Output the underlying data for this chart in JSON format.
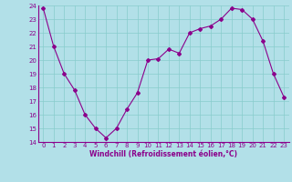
{
  "x": [
    0,
    1,
    2,
    3,
    4,
    5,
    6,
    7,
    8,
    9,
    10,
    11,
    12,
    13,
    14,
    15,
    16,
    17,
    18,
    19,
    20,
    21,
    22,
    23
  ],
  "y": [
    23.8,
    21.0,
    19.0,
    17.8,
    16.0,
    15.0,
    14.3,
    15.0,
    16.4,
    17.6,
    20.0,
    20.1,
    20.8,
    20.5,
    22.0,
    22.3,
    22.5,
    23.0,
    23.8,
    23.7,
    23.0,
    21.4,
    19.0,
    17.3
  ],
  "line_color": "#8b008b",
  "marker": "D",
  "marker_size": 2,
  "bg_color": "#b2e0e8",
  "grid_color": "#88cccc",
  "xlabel": "Windchill (Refroidissement éolien,°C)",
  "xlabel_color": "#8b008b",
  "tick_color": "#8b008b",
  "ylim": [
    14,
    24
  ],
  "xlim": [
    -0.5,
    23.5
  ],
  "yticks": [
    14,
    15,
    16,
    17,
    18,
    19,
    20,
    21,
    22,
    23,
    24
  ],
  "xticks": [
    0,
    1,
    2,
    3,
    4,
    5,
    6,
    7,
    8,
    9,
    10,
    11,
    12,
    13,
    14,
    15,
    16,
    17,
    18,
    19,
    20,
    21,
    22,
    23
  ],
  "tick_fontsize": 5.0,
  "xlabel_fontsize": 5.5
}
